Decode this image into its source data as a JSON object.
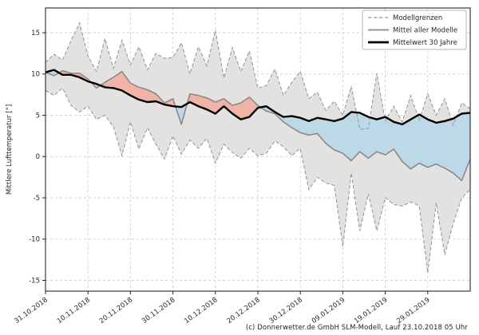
{
  "figure": {
    "footer": "(c) Donnerwetter.de GmbH SLM-Modell, Lauf 23.10.2018 05 Uhr"
  },
  "chart_data": {
    "type": "area",
    "title": "",
    "xlabel": "",
    "ylabel": "Mittlere Lufttemperatur [°]",
    "grid": true,
    "legend": {
      "position": "upper right",
      "entries": [
        {
          "label": "Modellgrenzen",
          "style": "dashed-gray"
        },
        {
          "label": "Mittel aller Modelle",
          "style": "solid-gray"
        },
        {
          "label": "Mittelwert 30 Jahre",
          "style": "solid-black-thick"
        }
      ]
    },
    "ylim": [
      -16.3,
      18.0
    ],
    "yticks": [
      15,
      10,
      5,
      0,
      -5,
      -10,
      -15
    ],
    "xlim_days": [
      0,
      100
    ],
    "xticks": [
      {
        "day": 0,
        "label": "31.10.2018"
      },
      {
        "day": 10,
        "label": "10.11.2018"
      },
      {
        "day": 20,
        "label": "20.11.2018"
      },
      {
        "day": 30,
        "label": "30.11.2018"
      },
      {
        "day": 40,
        "label": "10.12.2018"
      },
      {
        "day": 50,
        "label": "20.12.2018"
      },
      {
        "day": 60,
        "label": "30.12.2018"
      },
      {
        "day": 70,
        "label": "09.01.2019"
      },
      {
        "day": 80,
        "label": "19.01.2019"
      },
      {
        "day": 90,
        "label": "29.01.2019"
      }
    ],
    "x_days": [
      0,
      2,
      4,
      6,
      8,
      10,
      12,
      14,
      16,
      18,
      20,
      22,
      24,
      26,
      28,
      30,
      32,
      34,
      36,
      38,
      40,
      42,
      44,
      46,
      48,
      50,
      52,
      54,
      56,
      58,
      60,
      62,
      64,
      66,
      68,
      70,
      72,
      74,
      76,
      78,
      80,
      82,
      84,
      86,
      88,
      90,
      92,
      94,
      96,
      98,
      100
    ],
    "series": [
      {
        "name": "Modellgrenzen (obere Grenze)",
        "role": "upper_bound",
        "values": [
          11.4,
          12.4,
          11.7,
          14.0,
          16.2,
          12.2,
          10.3,
          14.3,
          10.7,
          14.1,
          11.1,
          13.3,
          10.5,
          12.5,
          11.9,
          12.0,
          13.8,
          10.0,
          13.3,
          11.0,
          15.3,
          9.5,
          13.2,
          10.3,
          12.8,
          8.3,
          8.6,
          10.6,
          7.4,
          9.0,
          10.3,
          7.0,
          7.8,
          5.6,
          6.7,
          5.0,
          8.5,
          3.3,
          3.4,
          10.1,
          4.3,
          6.1,
          4.2,
          7.4,
          4.4,
          7.6,
          5.0,
          7.0,
          3.8,
          6.5,
          5.8
        ]
      },
      {
        "name": "Modellgrenzen (untere Grenze)",
        "role": "lower_bound",
        "values": [
          8.0,
          7.4,
          8.3,
          6.2,
          5.4,
          6.1,
          4.5,
          5.0,
          3.6,
          0.1,
          4.2,
          0.9,
          3.5,
          1.5,
          -0.3,
          2.5,
          0.3,
          2.0,
          1.0,
          2.2,
          -0.8,
          1.5,
          0.5,
          -0.2,
          1.0,
          0.1,
          0.4,
          1.9,
          1.2,
          0.1,
          1.0,
          -4.0,
          -2.5,
          -3.2,
          -3.5,
          -10.9,
          -2.0,
          -9.0,
          -4.5,
          -9.0,
          -5.0,
          -5.8,
          -6.0,
          -5.5,
          -6.0,
          -14.1,
          -5.6,
          -11.9,
          -8.1,
          -5.0,
          -4.0
        ]
      },
      {
        "name": "Mittel aller Modelle",
        "role": "model_mean",
        "values": [
          10.2,
          9.8,
          10.4,
          10.1,
          10.1,
          9.4,
          8.3,
          9.0,
          9.6,
          10.3,
          8.9,
          8.4,
          8.1,
          7.6,
          6.5,
          7.0,
          3.9,
          7.6,
          7.4,
          7.1,
          6.6,
          7.0,
          6.2,
          6.5,
          7.2,
          6.2,
          5.5,
          5.2,
          4.2,
          3.5,
          2.9,
          2.6,
          2.8,
          1.6,
          0.8,
          0.4,
          -0.5,
          0.6,
          -0.2,
          0.6,
          0.2,
          0.9,
          -0.6,
          -1.5,
          -0.8,
          -1.3,
          -0.9,
          -1.4,
          -2.0,
          -2.9,
          -0.3
        ]
      },
      {
        "name": "Mittelwert 30 Jahre",
        "role": "climate_mean",
        "values": [
          10.2,
          10.5,
          9.9,
          9.9,
          9.6,
          9.1,
          8.8,
          8.4,
          8.3,
          8.0,
          7.4,
          6.9,
          6.6,
          6.7,
          6.3,
          6.1,
          6.0,
          6.6,
          6.1,
          5.7,
          5.2,
          6.1,
          5.2,
          4.5,
          4.8,
          5.9,
          6.1,
          5.4,
          4.8,
          4.9,
          4.7,
          4.3,
          4.7,
          4.5,
          4.3,
          4.6,
          5.4,
          5.3,
          4.8,
          4.5,
          4.8,
          4.2,
          3.9,
          4.5,
          5.1,
          4.5,
          4.1,
          4.3,
          4.6,
          5.2,
          5.3
        ]
      }
    ],
    "colors": {
      "band_fill": "#e3e2e0",
      "band_edge": "#9b9b9b",
      "above_normal_fill": "#f0b4a6",
      "below_normal_fill": "#bdd8e6",
      "model_mean_line": "#8a8a8a",
      "climate_mean_line": "#000000",
      "grid": "#cfcfcf",
      "spine": "#262626",
      "text": "#262626",
      "legend_border": "#b3b3b3"
    }
  }
}
